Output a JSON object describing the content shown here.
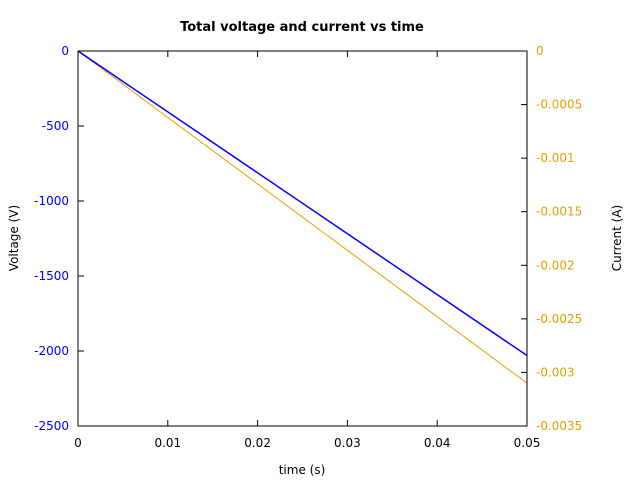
{
  "chart_data": {
    "type": "line",
    "title": "Total voltage and current vs time",
    "xlabel": "time (s)",
    "ylabel": "Voltage (V)",
    "y2label": "Current (A)",
    "xlim": [
      0,
      0.05
    ],
    "ylim": [
      -2500,
      0
    ],
    "y2lim": [
      -0.0035,
      0
    ],
    "x_ticks": [
      {
        "value": 0,
        "label": "0"
      },
      {
        "value": 0.01,
        "label": "0.01"
      },
      {
        "value": 0.02,
        "label": "0.02"
      },
      {
        "value": 0.03,
        "label": "0.03"
      },
      {
        "value": 0.04,
        "label": "0.04"
      },
      {
        "value": 0.05,
        "label": "0.05"
      }
    ],
    "y_ticks": [
      {
        "value": 0,
        "label": "0"
      },
      {
        "value": -500,
        "label": "-500"
      },
      {
        "value": -1000,
        "label": "-1000"
      },
      {
        "value": -1500,
        "label": "-1500"
      },
      {
        "value": -2000,
        "label": "-2000"
      },
      {
        "value": -2500,
        "label": "-2500"
      }
    ],
    "y2_ticks": [
      {
        "value": 0,
        "label": "0"
      },
      {
        "value": -0.0005,
        "label": "-0.0005"
      },
      {
        "value": -0.001,
        "label": "-0.001"
      },
      {
        "value": -0.0015,
        "label": "-0.0015"
      },
      {
        "value": -0.002,
        "label": "-0.002"
      },
      {
        "value": -0.0025,
        "label": "-0.0025"
      },
      {
        "value": -0.003,
        "label": "-0.003"
      },
      {
        "value": -0.0035,
        "label": "-0.0035"
      }
    ],
    "grid": false,
    "series": [
      {
        "axis": "left",
        "color": "#0000ff",
        "x": [
          0,
          0.05
        ],
        "y": [
          0,
          -2030
        ]
      },
      {
        "axis": "right",
        "color": "#e69f00",
        "x": [
          0,
          0.05
        ],
        "y": [
          0,
          -0.0031
        ]
      }
    ]
  }
}
